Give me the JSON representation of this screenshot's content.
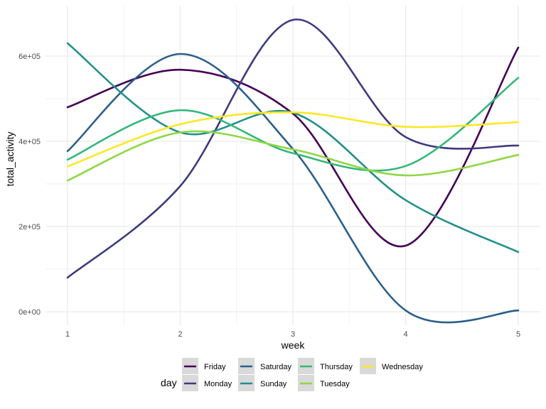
{
  "chart_data": {
    "type": "line",
    "xlabel": "week",
    "ylabel": "total_activity",
    "x": [
      1,
      2,
      3,
      4,
      5
    ],
    "xticks": [
      "1",
      "2",
      "3",
      "4",
      "5"
    ],
    "xlim": [
      0.8,
      5.2
    ],
    "ylim": [
      -20000,
      720000
    ],
    "yticks": [
      0,
      200000,
      400000,
      600000
    ],
    "ytick_labels": [
      "0e+00",
      "2e+05",
      "4e+05",
      "6e+05"
    ],
    "grid": true,
    "legend_title": "day",
    "legend_position": "bottom",
    "series": [
      {
        "name": "Friday",
        "color": "#440154",
        "values": [
          480000,
          568000,
          465000,
          155000,
          620000
        ]
      },
      {
        "name": "Monday",
        "color": "#3F3A7D",
        "values": [
          80000,
          295000,
          685000,
          410000,
          390000
        ]
      },
      {
        "name": "Saturday",
        "color": "#2C5F8A",
        "values": [
          377000,
          605000,
          382000,
          3000,
          3000
        ]
      },
      {
        "name": "Sunday",
        "color": "#21908C",
        "values": [
          630000,
          421000,
          467000,
          262000,
          140000
        ]
      },
      {
        "name": "Thursday",
        "color": "#35B779",
        "values": [
          357000,
          473000,
          372000,
          342000,
          549000
        ]
      },
      {
        "name": "Tuesday",
        "color": "#8FD744",
        "values": [
          308000,
          421000,
          381000,
          320000,
          368000
        ]
      },
      {
        "name": "Wednesday",
        "color": "#FDE725",
        "values": [
          341000,
          440000,
          468000,
          434000,
          445000
        ]
      }
    ]
  }
}
